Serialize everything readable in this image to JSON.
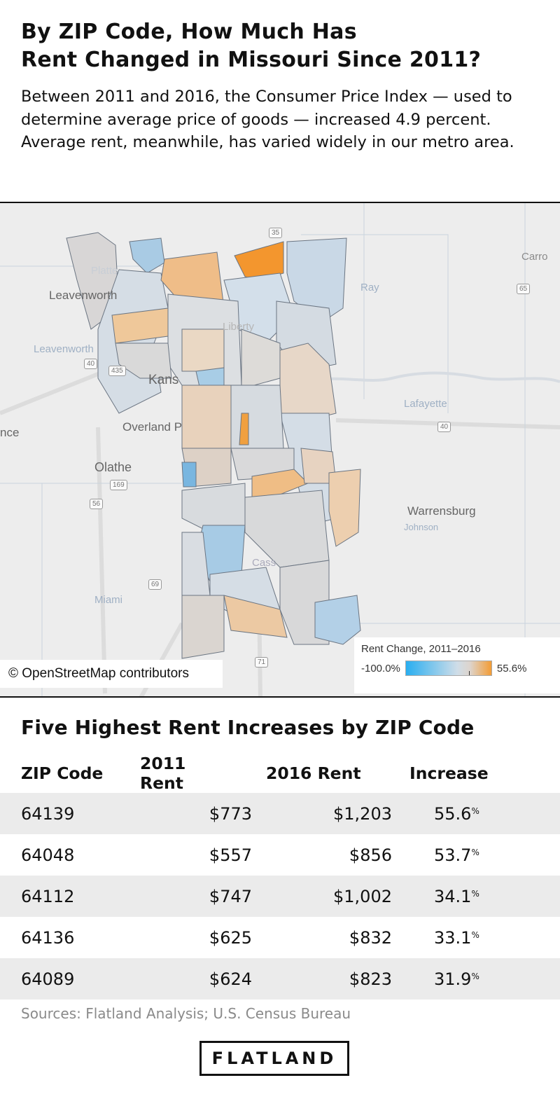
{
  "header": {
    "title_line1": "By ZIP Code, How Much Has",
    "title_line2": "Rent Changed in Missouri Since 2011?",
    "subtitle": "Between 2011 and 2016, the Consumer Price Index — used to determine average price of goods — increased 4.9 percent. Average rent, meanwhile, has varied widely in our metro area."
  },
  "map": {
    "labels": {
      "carro": "Carro",
      "ray": "Ray",
      "leavenworth_city": "Leavenworth",
      "leavenworth_county": "Leavenworth",
      "platte": "Platte",
      "liberty": "Liberty",
      "kansas": "Kans",
      "lafayette": "Lafayette",
      "overland": "Overland P",
      "nce": "nce",
      "olathe": "Olathe",
      "warrensburg": "Warrensburg",
      "johnson": "Johnson",
      "miami": "Miami",
      "cass": "Cass"
    },
    "shields": {
      "us65": "65",
      "i435": "435",
      "i35": "35",
      "us40a": "40",
      "us40b": "40",
      "us169": "169",
      "us56": "56",
      "us69": "69",
      "us71": "71"
    },
    "attribution": "© OpenStreetMap contributors",
    "legend": {
      "title": "Rent Change, 2011–2016",
      "min": "-100.0%",
      "max": "55.6%",
      "min_color": "#29aef0",
      "max_color": "#f39c35"
    }
  },
  "table": {
    "title": "Five Highest Rent Increases by ZIP Code",
    "columns": [
      "ZIP Code",
      "2011 Rent",
      "2016 Rent",
      "Increase"
    ],
    "rows": [
      {
        "zip": "64139",
        "r2011": "$773",
        "r2016": "$1,203",
        "inc": "55.6",
        "pct": "%"
      },
      {
        "zip": "64048",
        "r2011": "$557",
        "r2016": "$856",
        "inc": "53.7",
        "pct": "%"
      },
      {
        "zip": "64112",
        "r2011": "$747",
        "r2016": "$1,002",
        "inc": "34.1",
        "pct": "%"
      },
      {
        "zip": "64136",
        "r2011": "$625",
        "r2016": "$832",
        "inc": "33.1",
        "pct": "%"
      },
      {
        "zip": "64089",
        "r2011": "$624",
        "r2016": "$823",
        "inc": "31.9",
        "pct": "%"
      }
    ]
  },
  "sources": "Sources: Flatland Analysis; U.S. Census Bureau",
  "logo": "FLATLAND"
}
